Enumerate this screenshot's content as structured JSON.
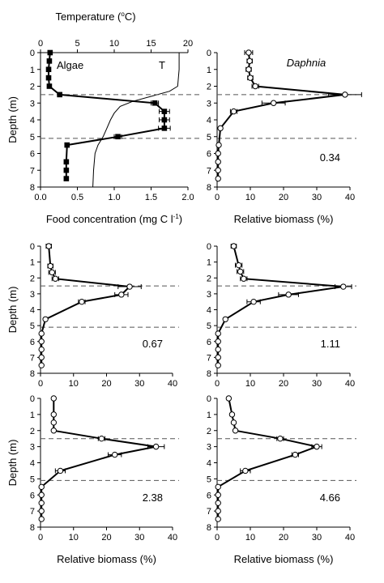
{
  "chart_data": [
    {
      "id": "p1",
      "type": "line",
      "ylabel": "Depth (m)",
      "xlabel": "Food concentration (mg C l",
      "xlabel_sup": "-1",
      "xlabel_tail": ")",
      "top_xlabel": "Temperature (",
      "top_xlabel_sup": "o",
      "top_xlabel_tail": "C)",
      "xlim": [
        0,
        2.0
      ],
      "ylim": [
        0,
        8
      ],
      "xticks": [
        0.0,
        0.5,
        1.0,
        1.5,
        2.0
      ],
      "xtick_labels": [
        "0.0",
        "0.5",
        "1.0",
        "1.5",
        "2.0"
      ],
      "top_xlim": [
        0,
        20
      ],
      "top_xticks": [
        0,
        5,
        10,
        15,
        20
      ],
      "top_xtick_labels": [
        "0",
        "5",
        "10",
        "15",
        "20"
      ],
      "yticks": [
        0,
        1,
        2,
        3,
        4,
        5,
        6,
        7,
        8
      ],
      "ytick_labels": [
        "0",
        "1",
        "2",
        "3",
        "4",
        "5",
        "6",
        "7",
        "8"
      ],
      "dashed_depths": [
        2.5,
        5.1
      ],
      "label_left": "Algae",
      "label_right": "T",
      "series": [
        {
          "marker": "filled",
          "y": [
            0,
            0.5,
            1,
            1.5,
            2,
            2.5,
            3,
            3.5,
            4,
            4.5,
            5,
            5.5,
            6.5,
            7,
            7.5
          ],
          "x": [
            0.13,
            0.12,
            0.11,
            0.11,
            0.12,
            0.26,
            1.55,
            1.68,
            1.68,
            1.68,
            1.05,
            0.36,
            0.35,
            0.35,
            0.35
          ],
          "err": [
            0,
            0,
            0,
            0,
            0,
            0,
            0.05,
            0.07,
            0.07,
            0.08,
            0.05,
            0,
            0,
            0,
            0
          ]
        }
      ],
      "temperature": {
        "y": [
          0,
          1,
          2,
          2.3,
          2.6,
          2.9,
          3.2,
          3.6,
          4.0,
          4.5,
          5.0,
          5.5,
          6.0,
          7.0,
          8.0
        ],
        "x": [
          18.8,
          18.8,
          18.6,
          17.5,
          15.0,
          12.5,
          10.8,
          10.0,
          9.5,
          9.0,
          8.5,
          7.8,
          7.4,
          7.2,
          7.1
        ]
      }
    },
    {
      "id": "p2",
      "type": "line",
      "title": "Daphnia",
      "xlabel": "Relative biomass (%)",
      "xlim": [
        0,
        40
      ],
      "ylim": [
        0,
        8
      ],
      "xticks": [
        0,
        10,
        20,
        30,
        40
      ],
      "xtick_labels": [
        "0",
        "10",
        "20",
        "30",
        "40"
      ],
      "yticks": [
        0,
        1,
        2,
        3,
        4,
        5,
        6,
        7,
        8
      ],
      "ytick_labels": [
        "0",
        "1",
        "2",
        "3",
        "4",
        "5",
        "6",
        "7",
        "8"
      ],
      "dashed_depths": [
        2.5,
        5.1
      ],
      "annotation": "0.34",
      "series": [
        {
          "marker": "open",
          "y": [
            0,
            0.5,
            1,
            1.5,
            2,
            2.5,
            3,
            3.5,
            4.5,
            5.5,
            6,
            6.5,
            7,
            7.5
          ],
          "x": [
            9.5,
            9.8,
            9.5,
            10.0,
            11.5,
            38.5,
            17.0,
            5.0,
            1.0,
            0.5,
            0.3,
            0.3,
            0.3,
            0.3
          ],
          "err": [
            1.2,
            0.8,
            0.8,
            0.8,
            1.0,
            5.0,
            3.5,
            1.0,
            0,
            0,
            0,
            0,
            0,
            0
          ]
        }
      ]
    },
    {
      "id": "p3",
      "type": "line",
      "ylabel": "Depth (m)",
      "xlim": [
        0,
        40
      ],
      "ylim": [
        0,
        8
      ],
      "xticks": [
        0,
        10,
        20,
        30,
        40
      ],
      "xtick_labels": [
        "0",
        "10",
        "20",
        "30",
        "40"
      ],
      "yticks": [
        0,
        1,
        2,
        3,
        4,
        5,
        6,
        7,
        8
      ],
      "ytick_labels": [
        "0",
        "1",
        "2",
        "3",
        "4",
        "5",
        "6",
        "7",
        "8"
      ],
      "dashed_depths": [
        2.5,
        5.1
      ],
      "annotation": "0.67",
      "series": [
        {
          "marker": "open",
          "y": [
            0,
            1.25,
            1.65,
            2.05,
            2.55,
            3.05,
            3.5,
            4.6,
            5.5,
            6,
            6.5,
            7,
            7.5
          ],
          "x": [
            2.5,
            3.0,
            3.5,
            4.5,
            27.0,
            24.5,
            12.5,
            1.5,
            0.3,
            0.3,
            0.3,
            0.3,
            0.3
          ],
          "err": [
            0.8,
            0.8,
            1.0,
            1.0,
            3.5,
            2.0,
            1.0,
            0,
            0,
            0,
            0,
            0,
            0
          ]
        }
      ]
    },
    {
      "id": "p4",
      "type": "line",
      "xlim": [
        0,
        40
      ],
      "ylim": [
        0,
        8
      ],
      "xticks": [
        0,
        10,
        20,
        30,
        40
      ],
      "xtick_labels": [
        "0",
        "10",
        "20",
        "30",
        "40"
      ],
      "yticks": [
        0,
        1,
        2,
        3,
        4,
        5,
        6,
        7,
        8
      ],
      "ytick_labels": [
        "0",
        "1",
        "2",
        "3",
        "4",
        "5",
        "6",
        "7",
        "8"
      ],
      "dashed_depths": [
        2.5,
        5.1
      ],
      "annotation": "1.11",
      "series": [
        {
          "marker": "open",
          "y": [
            0,
            1.2,
            1.6,
            2.05,
            2.55,
            3.05,
            3.5,
            4.6,
            5.5,
            6,
            6.5,
            7,
            7.5
          ],
          "x": [
            5.0,
            6.5,
            7.0,
            8.0,
            38.0,
            21.5,
            11.0,
            2.5,
            0.3,
            0.3,
            0.3,
            0.3,
            0.3
          ],
          "err": [
            0.8,
            1.0,
            1.0,
            1.0,
            2.5,
            3.0,
            2.0,
            0,
            0,
            0,
            0,
            0,
            0
          ]
        }
      ]
    },
    {
      "id": "p5",
      "type": "line",
      "ylabel": "Depth (m)",
      "xlabel": "Relative biomass (%)",
      "xlim": [
        0,
        40
      ],
      "ylim": [
        0,
        8
      ],
      "xticks": [
        0,
        10,
        20,
        30,
        40
      ],
      "xtick_labels": [
        "0",
        "10",
        "20",
        "30",
        "40"
      ],
      "yticks": [
        0,
        1,
        2,
        3,
        4,
        5,
        6,
        7,
        8
      ],
      "ytick_labels": [
        "0",
        "1",
        "2",
        "3",
        "4",
        "5",
        "6",
        "7",
        "8"
      ],
      "dashed_depths": [
        2.5,
        5.1
      ],
      "annotation": "2.38",
      "series": [
        {
          "marker": "open",
          "y": [
            0,
            1,
            1.5,
            2,
            2.5,
            3,
            3.5,
            4.5,
            5.5,
            6,
            6.5,
            7,
            7.5
          ],
          "x": [
            4.0,
            4.0,
            4.0,
            4.0,
            18.5,
            35.0,
            22.5,
            6.0,
            0.3,
            0.3,
            0.3,
            0.3,
            0.3
          ],
          "err": [
            0,
            0,
            0,
            0,
            1.0,
            2.5,
            2.0,
            1.5,
            0,
            0,
            0,
            0,
            0
          ]
        }
      ]
    },
    {
      "id": "p6",
      "type": "line",
      "xlabel": "Relative biomass (%)",
      "xlim": [
        0,
        40
      ],
      "ylim": [
        0,
        8
      ],
      "xticks": [
        0,
        10,
        20,
        30,
        40
      ],
      "xtick_labels": [
        "0",
        "10",
        "20",
        "30",
        "40"
      ],
      "yticks": [
        0,
        1,
        2,
        3,
        4,
        5,
        6,
        7,
        8
      ],
      "ytick_labels": [
        "0",
        "1",
        "2",
        "3",
        "4",
        "5",
        "6",
        "7",
        "8"
      ],
      "dashed_depths": [
        2.5,
        5.1
      ],
      "annotation": "4.66",
      "series": [
        {
          "marker": "open",
          "y": [
            0,
            1,
            1.5,
            2,
            2.5,
            3,
            3.5,
            4.5,
            5.5,
            6,
            6.5,
            7,
            7.5
          ],
          "x": [
            3.5,
            4.5,
            5.0,
            5.5,
            19.0,
            30.0,
            23.5,
            8.5,
            0.3,
            0.3,
            0.3,
            0.3,
            0.3
          ],
          "err": [
            0,
            0,
            0,
            0,
            1.0,
            1.5,
            1.0,
            1.5,
            0,
            0,
            0,
            0,
            0
          ]
        }
      ]
    }
  ]
}
